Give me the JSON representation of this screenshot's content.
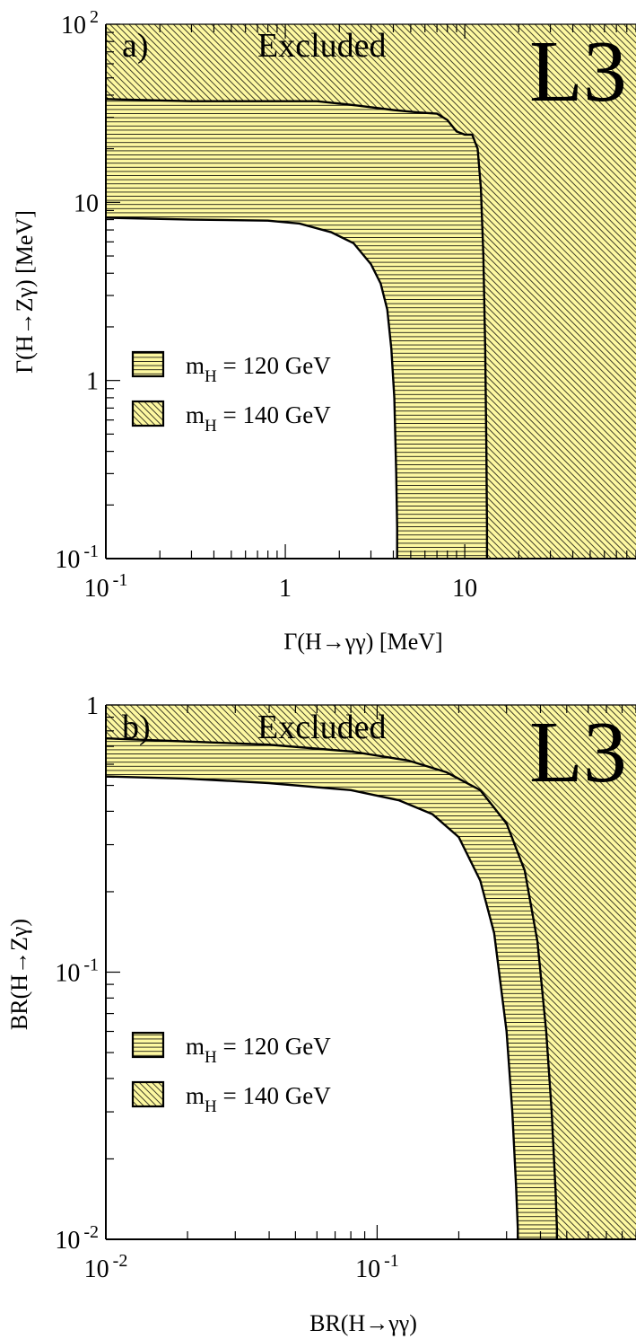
{
  "chart_data": [
    {
      "type": "area",
      "panel_label": "a)",
      "annotation": "Excluded",
      "logo": "L3",
      "xlabel": "Γ(H→γγ) [MeV]",
      "ylabel": "Γ(H→Zγ) [MeV]",
      "x_scale": "log",
      "y_scale": "log",
      "xlim": [
        0.1,
        90
      ],
      "ylim": [
        0.1,
        100
      ],
      "x_ticks": [
        {
          "value": 0.1,
          "base": "10",
          "exp": "-1"
        },
        {
          "value": 1,
          "base": "1",
          "exp": ""
        },
        {
          "value": 10,
          "base": "10",
          "exp": ""
        }
      ],
      "y_ticks": [
        {
          "value": 0.1,
          "base": "10",
          "exp": "-1"
        },
        {
          "value": 1,
          "base": "1",
          "exp": ""
        },
        {
          "value": 10,
          "base": "10",
          "exp": ""
        },
        {
          "value": 100,
          "base": "10",
          "exp": "2"
        }
      ],
      "legend": {
        "placement": "left-center",
        "entries": [
          {
            "main": "m",
            "sub": "H",
            "rest": " = 120 GeV",
            "pattern": "horizontal"
          },
          {
            "main": "m",
            "sub": "H",
            "rest": " = 140 GeV",
            "pattern": "diagonal"
          }
        ]
      },
      "series": [
        {
          "pattern": "horizontal",
          "x": [
            0.1,
            0.3,
            0.8,
            1.2,
            1.8,
            2.4,
            3.0,
            3.4,
            3.7,
            3.9,
            4.05,
            4.15,
            4.2,
            4.2
          ],
          "y": [
            8.2,
            8.0,
            7.9,
            7.6,
            6.8,
            5.9,
            4.5,
            3.5,
            2.5,
            1.5,
            0.8,
            0.3,
            0.15,
            0.1
          ]
        },
        {
          "pattern": "diagonal",
          "x": [
            0.1,
            0.3,
            0.8,
            1.5,
            2.5,
            4.0,
            5.5,
            7.0,
            8.0,
            9.0,
            10.0,
            11.0,
            11.8,
            12.3,
            12.7,
            13.0,
            13.2,
            13.3,
            13.3
          ],
          "y": [
            38,
            37,
            37,
            37,
            35,
            33,
            32,
            31.5,
            29,
            25,
            24,
            24,
            20,
            12,
            5,
            1.5,
            0.4,
            0.15,
            0.1
          ]
        }
      ]
    },
    {
      "type": "area",
      "panel_label": "b)",
      "annotation": "Excluded",
      "logo": "L3",
      "xlabel": "BR(H→γγ)",
      "ylabel": "BR(H→Zγ)",
      "x_scale": "log",
      "y_scale": "log",
      "xlim": [
        0.01,
        0.9
      ],
      "ylim": [
        0.01,
        1
      ],
      "x_ticks": [
        {
          "value": 0.01,
          "base": "10",
          "exp": "-2"
        },
        {
          "value": 0.1,
          "base": "10",
          "exp": "-1"
        }
      ],
      "y_ticks": [
        {
          "value": 0.01,
          "base": "10",
          "exp": "-2"
        },
        {
          "value": 0.1,
          "base": "10",
          "exp": "-1"
        },
        {
          "value": 1,
          "base": "1",
          "exp": ""
        }
      ],
      "legend": {
        "placement": "left-center",
        "entries": [
          {
            "main": "m",
            "sub": "H",
            "rest": " = 120 GeV",
            "pattern": "horizontal"
          },
          {
            "main": "m",
            "sub": "H",
            "rest": " = 140 GeV",
            "pattern": "diagonal"
          }
        ]
      },
      "series": [
        {
          "pattern": "horizontal",
          "x": [
            0.01,
            0.02,
            0.04,
            0.08,
            0.12,
            0.16,
            0.2,
            0.24,
            0.27,
            0.3,
            0.315,
            0.325,
            0.33,
            0.33
          ],
          "y": [
            0.54,
            0.53,
            0.51,
            0.48,
            0.44,
            0.39,
            0.32,
            0.22,
            0.14,
            0.06,
            0.03,
            0.016,
            0.011,
            0.01
          ]
        },
        {
          "pattern": "diagonal",
          "x": [
            0.01,
            0.02,
            0.04,
            0.08,
            0.13,
            0.18,
            0.24,
            0.3,
            0.35,
            0.39,
            0.42,
            0.44,
            0.455,
            0.46,
            0.46
          ],
          "y": [
            0.75,
            0.73,
            0.71,
            0.67,
            0.62,
            0.56,
            0.48,
            0.36,
            0.24,
            0.13,
            0.06,
            0.03,
            0.015,
            0.011,
            0.01
          ]
        }
      ]
    }
  ]
}
